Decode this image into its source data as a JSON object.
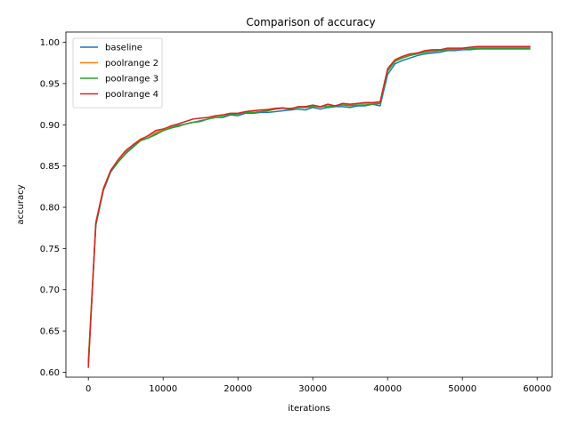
{
  "chart_data": {
    "type": "line",
    "title": "Comparison of accuracy",
    "xlabel": "iterations",
    "ylabel": "accuracy",
    "xlim": [
      -3000,
      62000
    ],
    "ylim": [
      0.594,
      1.0125
    ],
    "xticks": [
      0,
      10000,
      20000,
      30000,
      40000,
      50000,
      60000
    ],
    "xtick_labels": [
      "0",
      "10000",
      "20000",
      "30000",
      "40000",
      "50000",
      "60000"
    ],
    "yticks": [
      0.6,
      0.65,
      0.7,
      0.75,
      0.8,
      0.85,
      0.9,
      0.95,
      1.0
    ],
    "ytick_labels": [
      "0.60",
      "0.65",
      "0.70",
      "0.75",
      "0.80",
      "0.85",
      "0.90",
      "0.95",
      "1.00"
    ],
    "grid": false,
    "legend_position": "top-left",
    "x": [
      0,
      1000,
      2000,
      3000,
      4000,
      5000,
      6000,
      7000,
      8000,
      9000,
      10000,
      11000,
      12000,
      13000,
      14000,
      15000,
      16000,
      17000,
      18000,
      19000,
      20000,
      21000,
      22000,
      23000,
      24000,
      25000,
      26000,
      27000,
      28000,
      29000,
      30000,
      31000,
      32000,
      33000,
      34000,
      35000,
      36000,
      37000,
      38000,
      39000,
      40000,
      41000,
      42000,
      43000,
      44000,
      45000,
      46000,
      47000,
      48000,
      49000,
      50000,
      51000,
      52000,
      53000,
      54000,
      55000,
      56000,
      57000,
      58000,
      59000
    ],
    "series": [
      {
        "name": "baseline",
        "color": "#1f77b4",
        "values": [
          0.612,
          0.778,
          0.82,
          0.843,
          0.855,
          0.866,
          0.874,
          0.881,
          0.884,
          0.889,
          0.893,
          0.896,
          0.899,
          0.901,
          0.903,
          0.905,
          0.907,
          0.909,
          0.909,
          0.912,
          0.911,
          0.914,
          0.914,
          0.915,
          0.915,
          0.916,
          0.917,
          0.918,
          0.919,
          0.918,
          0.921,
          0.919,
          0.921,
          0.922,
          0.922,
          0.921,
          0.923,
          0.923,
          0.925,
          0.923,
          0.961,
          0.974,
          0.978,
          0.981,
          0.984,
          0.986,
          0.987,
          0.988,
          0.99,
          0.99,
          0.991,
          0.991,
          0.992,
          0.992,
          0.992,
          0.992,
          0.992,
          0.992,
          0.992,
          0.992
        ]
      },
      {
        "name": "poolrange 2",
        "color": "#ff7f0e",
        "values": [
          0.615,
          0.782,
          0.823,
          0.845,
          0.857,
          0.868,
          0.876,
          0.883,
          0.886,
          0.891,
          0.894,
          0.899,
          0.901,
          0.904,
          0.907,
          0.908,
          0.909,
          0.911,
          0.912,
          0.914,
          0.914,
          0.916,
          0.917,
          0.918,
          0.919,
          0.92,
          0.921,
          0.919,
          0.921,
          0.922,
          0.923,
          0.921,
          0.924,
          0.923,
          0.925,
          0.924,
          0.926,
          0.926,
          0.926,
          0.927,
          0.966,
          0.978,
          0.982,
          0.985,
          0.987,
          0.989,
          0.99,
          0.991,
          0.992,
          0.992,
          0.993,
          0.993,
          0.994,
          0.994,
          0.994,
          0.994,
          0.994,
          0.994,
          0.994,
          0.994
        ]
      },
      {
        "name": "poolrange 3",
        "color": "#2ca02c",
        "values": [
          0.61,
          0.78,
          0.821,
          0.844,
          0.855,
          0.865,
          0.873,
          0.881,
          0.884,
          0.888,
          0.893,
          0.896,
          0.898,
          0.901,
          0.903,
          0.904,
          0.907,
          0.909,
          0.91,
          0.913,
          0.913,
          0.915,
          0.915,
          0.916,
          0.917,
          0.919,
          0.92,
          0.92,
          0.921,
          0.921,
          0.922,
          0.922,
          0.922,
          0.923,
          0.924,
          0.923,
          0.924,
          0.924,
          0.925,
          0.926,
          0.965,
          0.977,
          0.981,
          0.984,
          0.986,
          0.988,
          0.989,
          0.99,
          0.991,
          0.991,
          0.992,
          0.992,
          0.993,
          0.993,
          0.993,
          0.993,
          0.993,
          0.993,
          0.993,
          0.993
        ]
      },
      {
        "name": "poolrange 4",
        "color": "#d62728",
        "values": [
          0.606,
          0.781,
          0.822,
          0.845,
          0.858,
          0.869,
          0.876,
          0.882,
          0.887,
          0.893,
          0.895,
          0.898,
          0.901,
          0.904,
          0.907,
          0.908,
          0.909,
          0.911,
          0.912,
          0.914,
          0.914,
          0.916,
          0.917,
          0.918,
          0.918,
          0.92,
          0.92,
          0.919,
          0.922,
          0.922,
          0.924,
          0.922,
          0.925,
          0.923,
          0.926,
          0.925,
          0.926,
          0.927,
          0.927,
          0.928,
          0.968,
          0.979,
          0.983,
          0.986,
          0.987,
          0.99,
          0.991,
          0.991,
          0.993,
          0.993,
          0.993,
          0.994,
          0.995,
          0.995,
          0.995,
          0.995,
          0.995,
          0.995,
          0.995,
          0.995
        ]
      }
    ]
  }
}
